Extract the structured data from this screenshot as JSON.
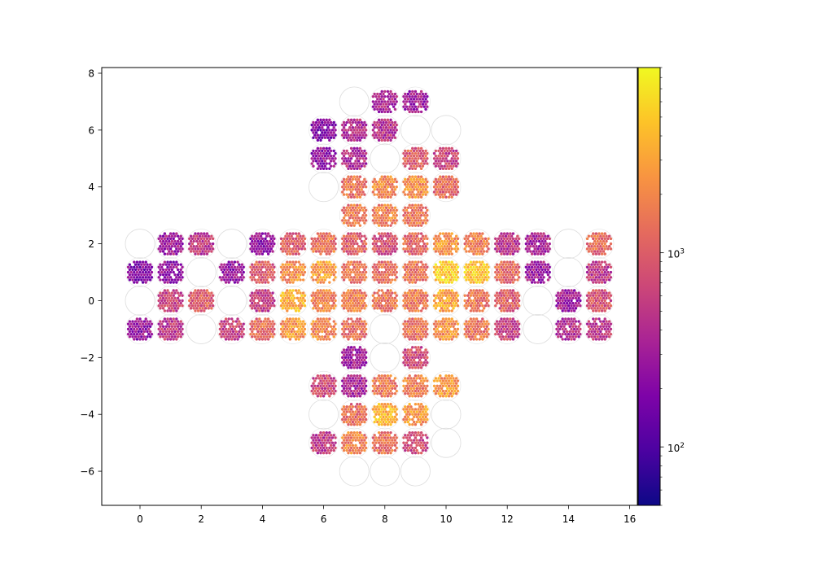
{
  "chart_data": {
    "type": "scatter",
    "title": "",
    "xlabel": "",
    "ylabel": "",
    "xlim": [
      -1.25,
      16.25
    ],
    "ylim": [
      -7.2,
      8.2
    ],
    "xticks": [
      0,
      2,
      4,
      6,
      8,
      10,
      12,
      14,
      16
    ],
    "yticks": [
      -6,
      -4,
      -2,
      0,
      2,
      4,
      6,
      8
    ],
    "xtick_labels": [
      "0",
      "2",
      "4",
      "6",
      "8",
      "10",
      "12",
      "14",
      "16"
    ],
    "ytick_labels": [
      "−6",
      "−4",
      "−2",
      "0",
      "2",
      "4",
      "6",
      "8"
    ],
    "grid": false,
    "colormap": "plasma",
    "colorbar": {
      "scale": "log",
      "range": [
        50,
        9000
      ],
      "major_ticks": [
        100,
        1000
      ],
      "tick_labels": [
        {
          "base": "10",
          "exp": "2"
        },
        {
          "base": "10",
          "exp": "3"
        }
      ]
    },
    "circle_radius": 0.48,
    "empty_modules": [
      [
        7,
        7
      ],
      [
        9,
        6
      ],
      [
        10,
        6
      ],
      [
        8,
        5
      ],
      [
        6,
        4
      ],
      [
        0,
        2
      ],
      [
        3,
        2
      ],
      [
        14,
        2
      ],
      [
        2,
        1
      ],
      [
        14,
        1
      ],
      [
        0,
        0
      ],
      [
        3,
        0
      ],
      [
        13,
        0
      ],
      [
        2,
        -1
      ],
      [
        8,
        -1
      ],
      [
        13,
        -1
      ],
      [
        8,
        -2
      ],
      [
        6,
        -4
      ],
      [
        10,
        -4
      ],
      [
        10,
        -5
      ],
      [
        7,
        -6
      ],
      [
        8,
        -6
      ],
      [
        9,
        -6
      ]
    ],
    "modules": [
      {
        "x": 8,
        "y": 7,
        "median": 350
      },
      {
        "x": 9,
        "y": 7,
        "median": 300
      },
      {
        "x": 6,
        "y": 6,
        "median": 200
      },
      {
        "x": 7,
        "y": 6,
        "median": 400
      },
      {
        "x": 8,
        "y": 6,
        "median": 450
      },
      {
        "x": 6,
        "y": 5,
        "median": 250
      },
      {
        "x": 7,
        "y": 5,
        "median": 400
      },
      {
        "x": 9,
        "y": 5,
        "median": 1000
      },
      {
        "x": 10,
        "y": 5,
        "median": 600
      },
      {
        "x": 7,
        "y": 4,
        "median": 1400
      },
      {
        "x": 8,
        "y": 4,
        "median": 2000
      },
      {
        "x": 9,
        "y": 4,
        "median": 2200
      },
      {
        "x": 10,
        "y": 4,
        "median": 1200
      },
      {
        "x": 7,
        "y": 3,
        "median": 1600
      },
      {
        "x": 8,
        "y": 3,
        "median": 1800
      },
      {
        "x": 9,
        "y": 3,
        "median": 1500
      },
      {
        "x": 1,
        "y": 2,
        "median": 300
      },
      {
        "x": 2,
        "y": 2,
        "median": 500
      },
      {
        "x": 4,
        "y": 2,
        "median": 250
      },
      {
        "x": 5,
        "y": 2,
        "median": 1000
      },
      {
        "x": 6,
        "y": 2,
        "median": 1500
      },
      {
        "x": 7,
        "y": 2,
        "median": 1000
      },
      {
        "x": 8,
        "y": 2,
        "median": 800
      },
      {
        "x": 9,
        "y": 2,
        "median": 1200
      },
      {
        "x": 10,
        "y": 2,
        "median": 2500
      },
      {
        "x": 11,
        "y": 2,
        "median": 1600
      },
      {
        "x": 12,
        "y": 2,
        "median": 500
      },
      {
        "x": 13,
        "y": 2,
        "median": 350
      },
      {
        "x": 15,
        "y": 2,
        "median": 1200
      },
      {
        "x": 0,
        "y": 1,
        "median": 200
      },
      {
        "x": 1,
        "y": 1,
        "median": 250
      },
      {
        "x": 3,
        "y": 1,
        "median": 250
      },
      {
        "x": 4,
        "y": 1,
        "median": 1000
      },
      {
        "x": 5,
        "y": 1,
        "median": 2200
      },
      {
        "x": 6,
        "y": 1,
        "median": 2600
      },
      {
        "x": 7,
        "y": 1,
        "median": 1500
      },
      {
        "x": 8,
        "y": 1,
        "median": 1300
      },
      {
        "x": 9,
        "y": 1,
        "median": 1500
      },
      {
        "x": 10,
        "y": 1,
        "median": 5000
      },
      {
        "x": 11,
        "y": 1,
        "median": 4500
      },
      {
        "x": 12,
        "y": 1,
        "median": 1200
      },
      {
        "x": 13,
        "y": 1,
        "median": 300
      },
      {
        "x": 15,
        "y": 1,
        "median": 500
      },
      {
        "x": 1,
        "y": 0,
        "median": 600
      },
      {
        "x": 2,
        "y": 0,
        "median": 1000
      },
      {
        "x": 4,
        "y": 0,
        "median": 600
      },
      {
        "x": 5,
        "y": 0,
        "median": 3500
      },
      {
        "x": 6,
        "y": 0,
        "median": 1800
      },
      {
        "x": 7,
        "y": 0,
        "median": 1800
      },
      {
        "x": 8,
        "y": 0,
        "median": 1500
      },
      {
        "x": 9,
        "y": 0,
        "median": 1600
      },
      {
        "x": 10,
        "y": 0,
        "median": 3000
      },
      {
        "x": 11,
        "y": 0,
        "median": 1500
      },
      {
        "x": 12,
        "y": 0,
        "median": 1000
      },
      {
        "x": 14,
        "y": 0,
        "median": 300
      },
      {
        "x": 15,
        "y": 0,
        "median": 800
      },
      {
        "x": 0,
        "y": -1,
        "median": 250
      },
      {
        "x": 1,
        "y": -1,
        "median": 500
      },
      {
        "x": 3,
        "y": -1,
        "median": 600
      },
      {
        "x": 4,
        "y": -1,
        "median": 1300
      },
      {
        "x": 5,
        "y": -1,
        "median": 2500
      },
      {
        "x": 6,
        "y": -1,
        "median": 2000
      },
      {
        "x": 7,
        "y": -1,
        "median": 1300
      },
      {
        "x": 9,
        "y": -1,
        "median": 1500
      },
      {
        "x": 10,
        "y": -1,
        "median": 2200
      },
      {
        "x": 11,
        "y": -1,
        "median": 1500
      },
      {
        "x": 12,
        "y": -1,
        "median": 600
      },
      {
        "x": 14,
        "y": -1,
        "median": 400
      },
      {
        "x": 15,
        "y": -1,
        "median": 500
      },
      {
        "x": 7,
        "y": -2,
        "median": 300
      },
      {
        "x": 9,
        "y": -2,
        "median": 700
      },
      {
        "x": 6,
        "y": -3,
        "median": 700
      },
      {
        "x": 7,
        "y": -3,
        "median": 350
      },
      {
        "x": 8,
        "y": -3,
        "median": 1600
      },
      {
        "x": 9,
        "y": -3,
        "median": 1800
      },
      {
        "x": 10,
        "y": -3,
        "median": 2500
      },
      {
        "x": 7,
        "y": -4,
        "median": 1300
      },
      {
        "x": 8,
        "y": -4,
        "median": 4000
      },
      {
        "x": 9,
        "y": -4,
        "median": 2500
      },
      {
        "x": 6,
        "y": -5,
        "median": 500
      },
      {
        "x": 7,
        "y": -5,
        "median": 1800
      },
      {
        "x": 8,
        "y": -5,
        "median": 1500
      },
      {
        "x": 9,
        "y": -5,
        "median": 700
      }
    ]
  }
}
